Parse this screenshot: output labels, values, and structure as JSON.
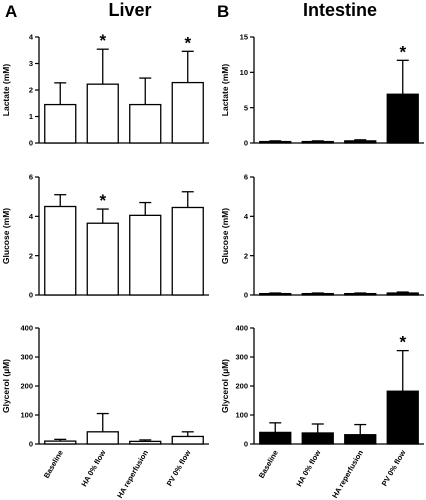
{
  "panels": [
    {
      "letter": "A",
      "title": "Liver"
    },
    {
      "letter": "B",
      "title": "Intestine"
    }
  ],
  "categories": [
    "Baseline",
    "HA 0% flow",
    "HA reperfusion",
    "PV 0% flow"
  ],
  "colors": {
    "liver_fill": "#ffffff",
    "intestine_fill": "#000000",
    "stroke": "#000000"
  },
  "chart_data": [
    {
      "type": "bar",
      "panel": "A",
      "ylabel": "Lactate (mM)",
      "ylim": [
        0,
        4
      ],
      "yticks": [
        0,
        1,
        2,
        3,
        4
      ],
      "categories": [
        "Baseline",
        "HA 0% flow",
        "HA reperfusion",
        "PV 0% flow"
      ],
      "values": [
        1.45,
        2.22,
        1.45,
        2.28
      ],
      "errors": [
        0.82,
        1.32,
        1.0,
        1.18
      ],
      "significant": [
        false,
        true,
        false,
        true
      ],
      "significance_marker": "*",
      "fill": "white",
      "show_xlabels": false
    },
    {
      "type": "bar",
      "panel": "A",
      "ylabel": "Glucose (mM)",
      "ylim": [
        0,
        6
      ],
      "yticks": [
        0,
        2,
        4,
        6
      ],
      "categories": [
        "Baseline",
        "HA 0% flow",
        "HA reperfusion",
        "PV 0% flow"
      ],
      "values": [
        4.5,
        3.65,
        4.05,
        4.45
      ],
      "errors": [
        0.6,
        0.72,
        0.65,
        0.8
      ],
      "significant": [
        false,
        true,
        false,
        false
      ],
      "significance_marker": "*",
      "fill": "white",
      "show_xlabels": false
    },
    {
      "type": "bar",
      "panel": "A",
      "ylabel": "Glycerol (µM)",
      "ylim": [
        0,
        400
      ],
      "yticks": [
        0,
        100,
        200,
        300,
        400
      ],
      "categories": [
        "Baseline",
        "HA 0% flow",
        "HA reperfusion",
        "PV 0% flow"
      ],
      "values": [
        10,
        42,
        9,
        26
      ],
      "errors": [
        6,
        63,
        5,
        16
      ],
      "significant": [
        false,
        false,
        false,
        false
      ],
      "significance_marker": "*",
      "fill": "white",
      "show_xlabels": true
    },
    {
      "type": "bar",
      "panel": "B",
      "ylabel": "Lactate (mM)",
      "ylim": [
        0,
        15
      ],
      "yticks": [
        0,
        5,
        10,
        15
      ],
      "categories": [
        "Baseline",
        "HA 0% flow",
        "HA reperfusion",
        "PV 0% flow"
      ],
      "values": [
        0.2,
        0.2,
        0.3,
        6.9
      ],
      "errors": [
        0.1,
        0.1,
        0.15,
        4.8
      ],
      "significant": [
        false,
        false,
        false,
        true
      ],
      "significance_marker": "*",
      "fill": "black",
      "show_xlabels": false
    },
    {
      "type": "bar",
      "panel": "B",
      "ylabel": "Glucose (mM)",
      "ylim": [
        0,
        6
      ],
      "yticks": [
        0,
        2,
        4,
        6
      ],
      "categories": [
        "Baseline",
        "HA 0% flow",
        "HA reperfusion",
        "PV 0% flow"
      ],
      "values": [
        0.07,
        0.07,
        0.07,
        0.1
      ],
      "errors": [
        0.03,
        0.03,
        0.03,
        0.05
      ],
      "significant": [
        false,
        false,
        false,
        false
      ],
      "significance_marker": "*",
      "fill": "black",
      "show_xlabels": false
    },
    {
      "type": "bar",
      "panel": "B",
      "ylabel": "Glycerol (µM)",
      "ylim": [
        0,
        400
      ],
      "yticks": [
        0,
        100,
        200,
        300,
        400
      ],
      "categories": [
        "Baseline",
        "HA 0% flow",
        "HA reperfusion",
        "PV 0% flow"
      ],
      "values": [
        40,
        38,
        32,
        182
      ],
      "errors": [
        33,
        31,
        35,
        140
      ],
      "significant": [
        false,
        false,
        false,
        true
      ],
      "significance_marker": "*",
      "fill": "black",
      "show_xlabels": true
    }
  ]
}
